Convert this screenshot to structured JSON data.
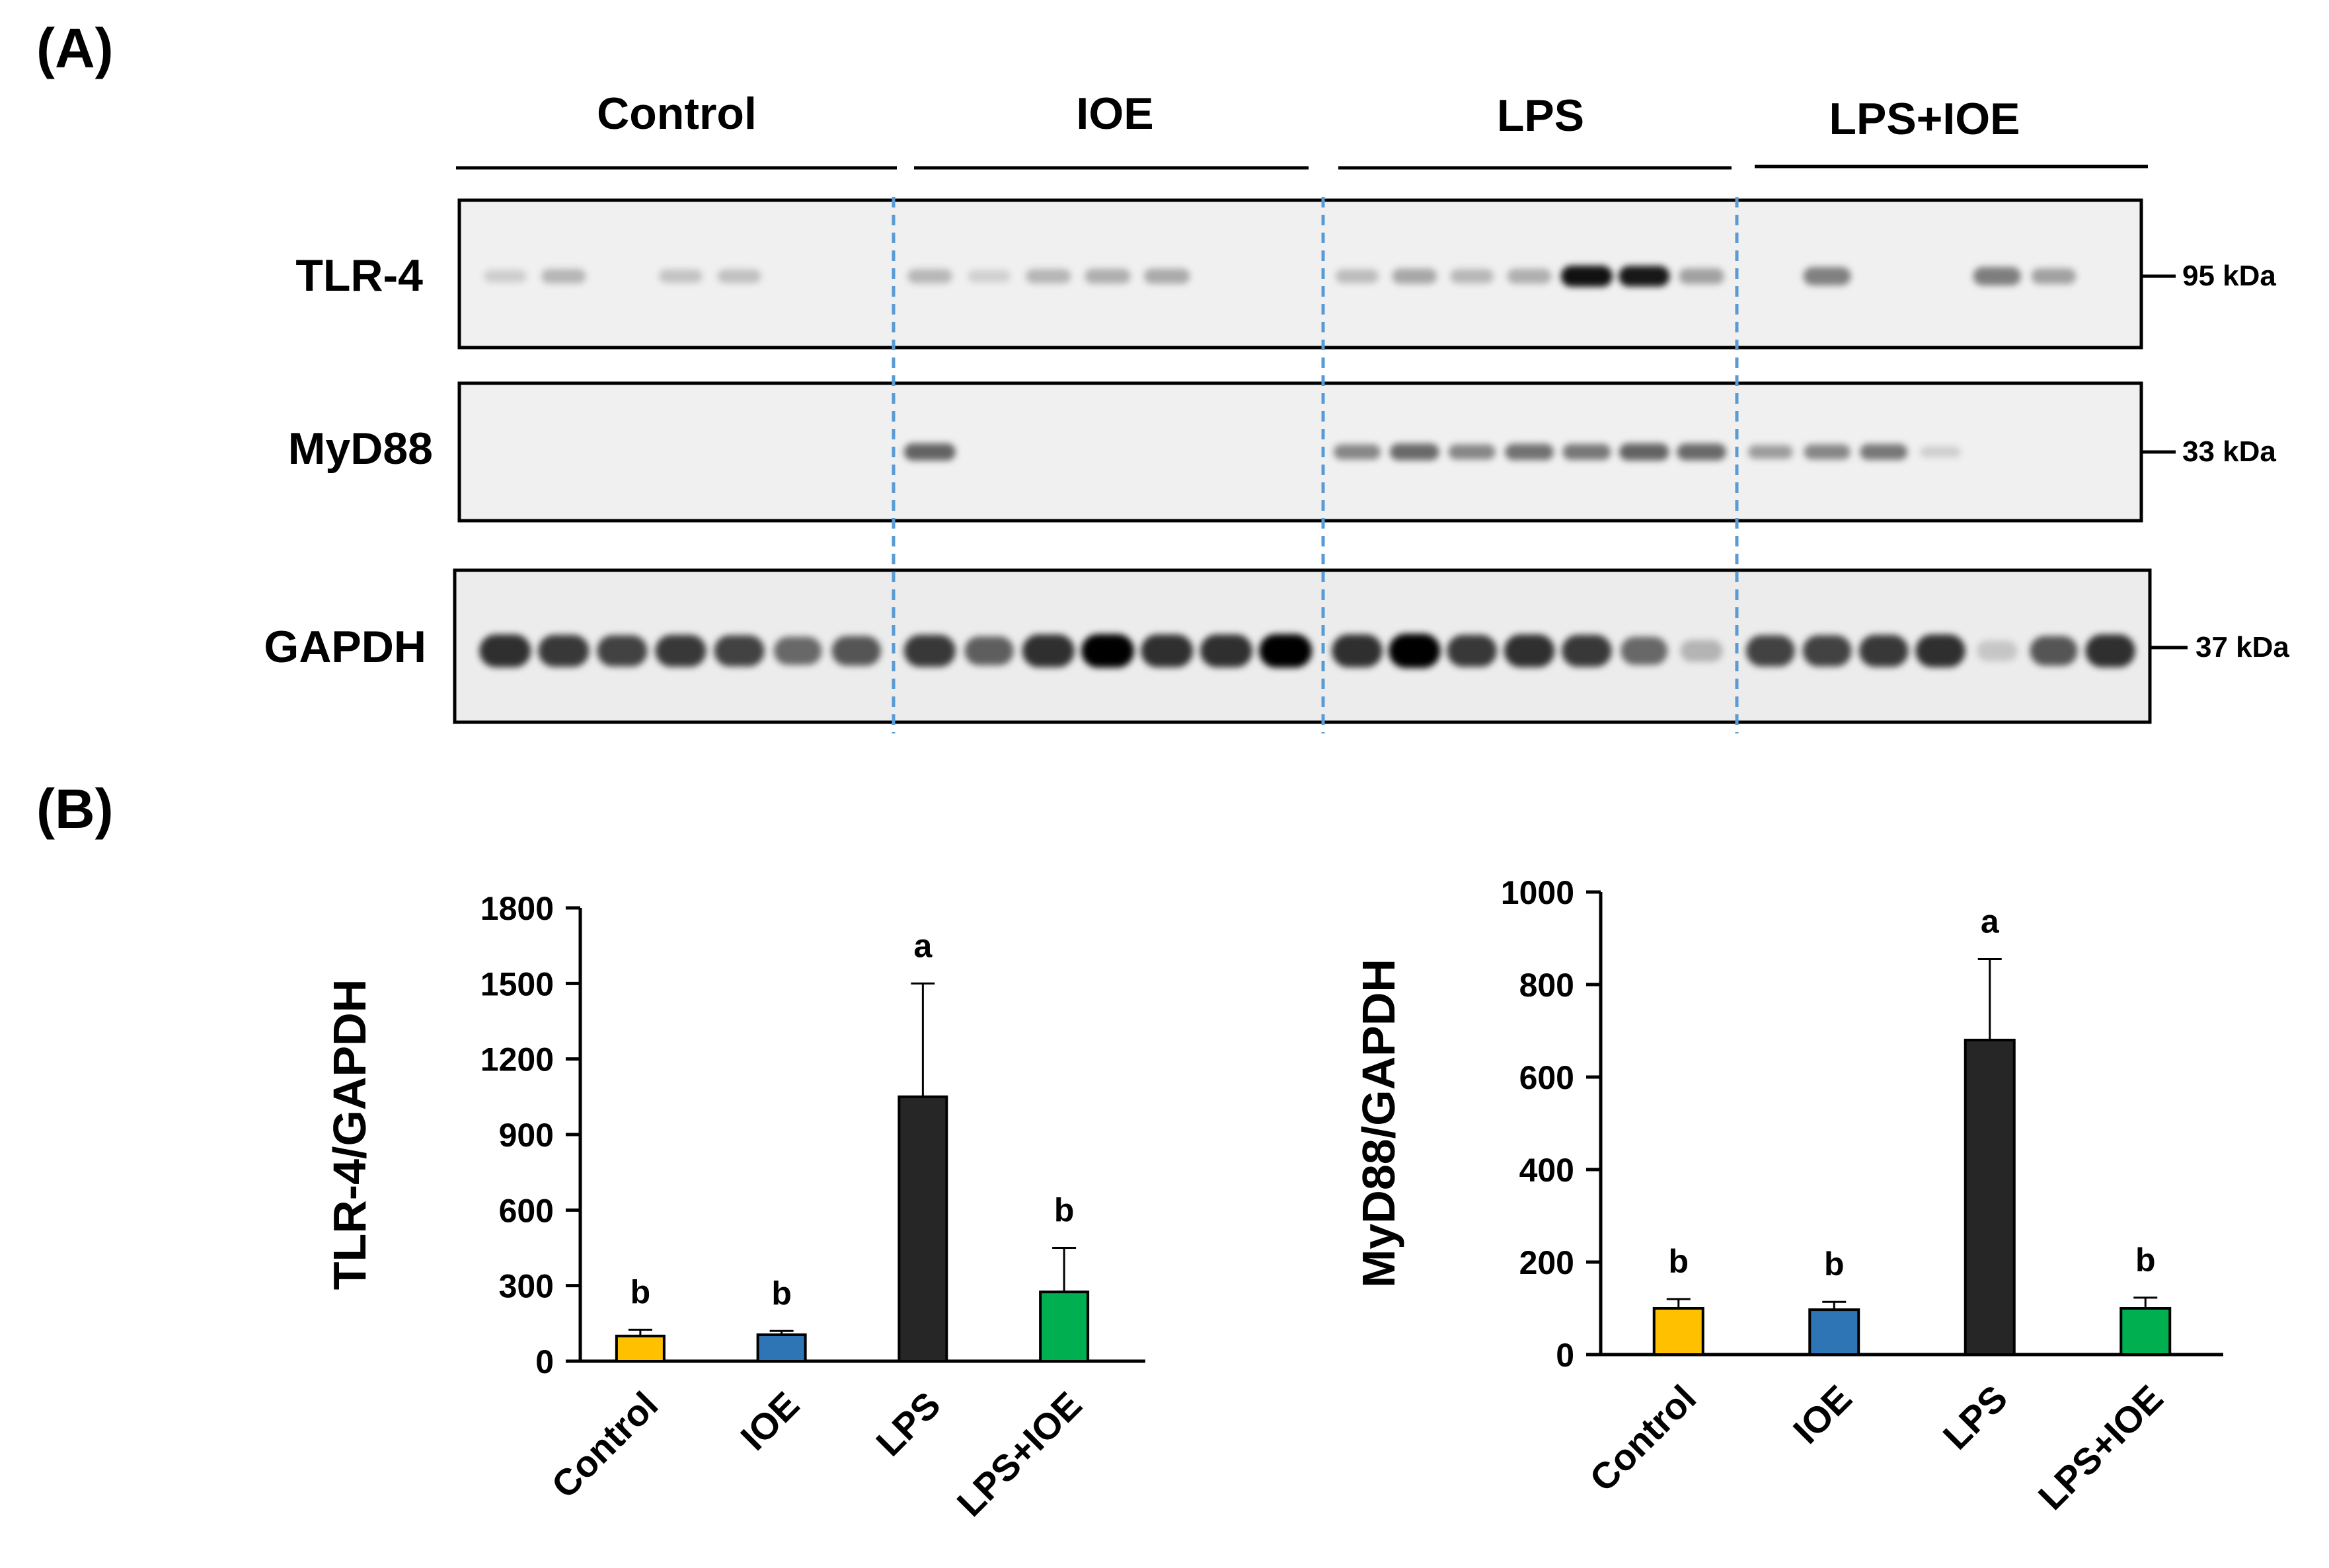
{
  "panel_a": {
    "label": "(A)",
    "groups": [
      "Control",
      "IOE",
      "LPS",
      "LPS+IOE"
    ],
    "blots": [
      {
        "name": "TLR-4",
        "marker": "95 kDa"
      },
      {
        "name": "MyD88",
        "marker": "33 kDa"
      },
      {
        "name": "GAPDH",
        "marker": "37 kDa"
      }
    ],
    "band_intensity": {
      "TLR-4": [
        [
          0.12,
          0.3,
          0.0,
          0.2,
          0.22,
          0.0,
          0.0
        ],
        [
          0.28,
          0.1,
          0.3,
          0.35,
          0.38,
          0.0,
          0.0
        ],
        [
          0.25,
          0.4,
          0.28,
          0.35,
          1.0,
          0.95,
          0.45
        ],
        [
          0.0,
          0.7,
          0.0,
          0.0,
          0.72,
          0.45,
          0.0
        ]
      ],
      "MyD88": [
        [
          0,
          0,
          0,
          0,
          0,
          0,
          0
        ],
        [
          0.85,
          0,
          0,
          0,
          0,
          0,
          0
        ],
        [
          0.6,
          0.8,
          0.6,
          0.75,
          0.7,
          0.85,
          0.8
        ],
        [
          0.45,
          0.6,
          0.7,
          0.1,
          0,
          0,
          0
        ]
      ],
      "GAPDH": [
        [
          0.9,
          0.85,
          0.8,
          0.85,
          0.8,
          0.6,
          0.7
        ],
        [
          0.85,
          0.65,
          0.9,
          0.95,
          0.9,
          0.9,
          0.95
        ],
        [
          0.9,
          1.0,
          0.85,
          0.9,
          0.85,
          0.6,
          0.2
        ],
        [
          0.8,
          0.8,
          0.85,
          0.9,
          0.1,
          0.7,
          0.9
        ]
      ]
    }
  },
  "panel_b": {
    "label": "(B)"
  },
  "chart_data": [
    {
      "type": "bar",
      "categories": [
        "Control",
        "IOE",
        "LPS",
        "LPS+IOE"
      ],
      "values": [
        100,
        105,
        1050,
        275
      ],
      "errors": [
        25,
        15,
        450,
        175
      ],
      "significance": [
        "b",
        "b",
        "a",
        "b"
      ],
      "colors": [
        "#ffc000",
        "#2e75b6",
        "#262626",
        "#00b050"
      ],
      "ylabel": "TLR-4/GAPDH",
      "ylim": [
        0,
        1800
      ],
      "yticks": [
        0,
        300,
        600,
        900,
        1200,
        1500,
        1800
      ]
    },
    {
      "type": "bar",
      "categories": [
        "Control",
        "IOE",
        "LPS",
        "LPS+IOE"
      ],
      "values": [
        100,
        97,
        680,
        100
      ],
      "errors": [
        20,
        17,
        175,
        23
      ],
      "significance": [
        "b",
        "b",
        "a",
        "b"
      ],
      "colors": [
        "#ffc000",
        "#2e75b6",
        "#262626",
        "#00b050"
      ],
      "ylabel": "MyD88/GAPDH",
      "ylim": [
        0,
        1000
      ],
      "yticks": [
        0,
        200,
        400,
        600,
        800,
        1000
      ]
    }
  ]
}
